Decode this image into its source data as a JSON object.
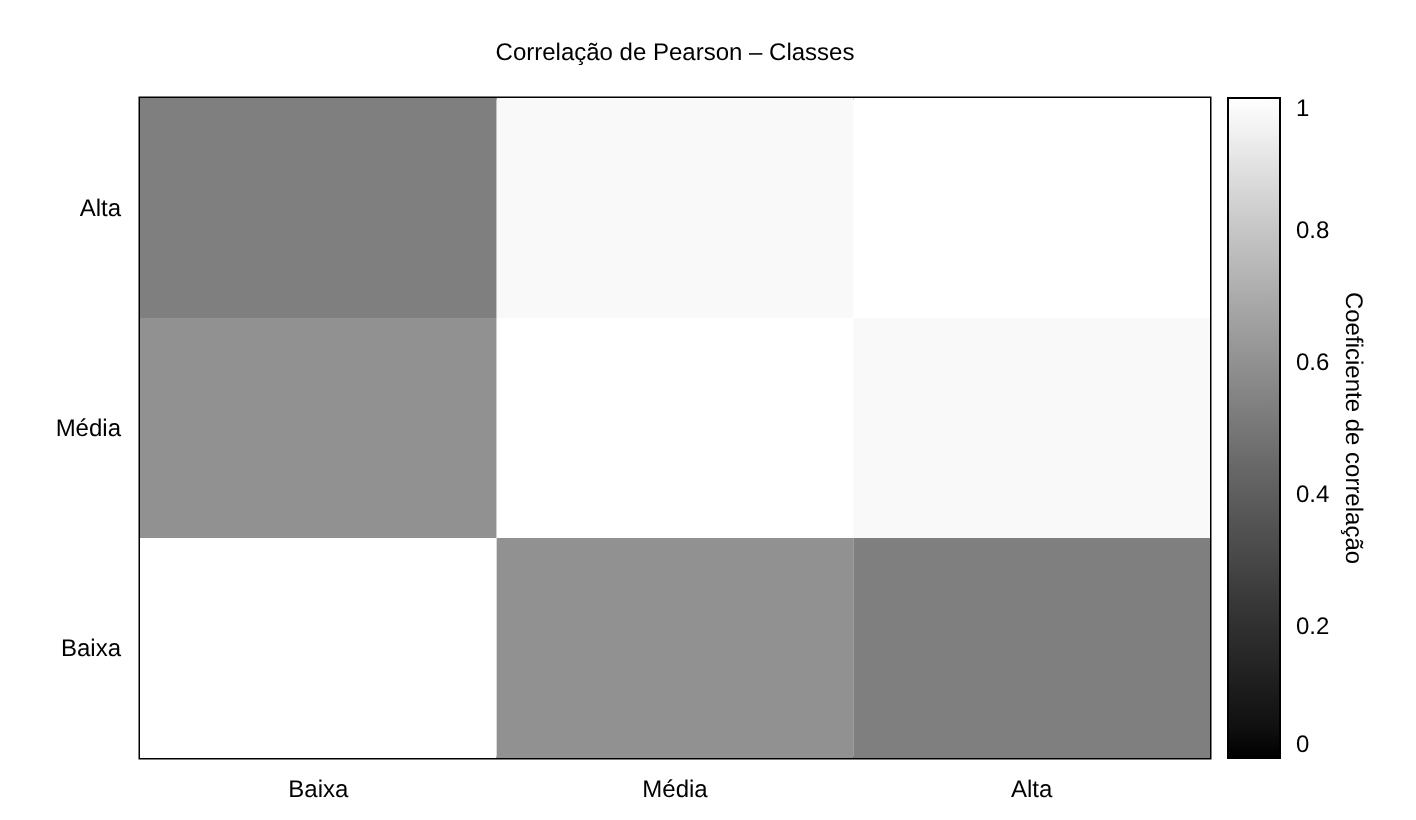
{
  "chart_data": {
    "type": "heatmap",
    "title": "Correlação de Pearson – Classes",
    "clabel": "Coeficiente de correlação",
    "categories": [
      "Baixa",
      "Média",
      "Alta"
    ],
    "y_categories": [
      "Alta",
      "Média",
      "Baixa"
    ],
    "cells": [
      [
        0.53,
        0.98,
        1
      ],
      [
        0.6,
        1,
        0.98
      ],
      [
        1,
        0.6,
        0.53
      ]
    ],
    "clim": [
      0,
      1
    ],
    "cticks": [
      0,
      0.2,
      0.4,
      0.6,
      0.8,
      1
    ]
  }
}
